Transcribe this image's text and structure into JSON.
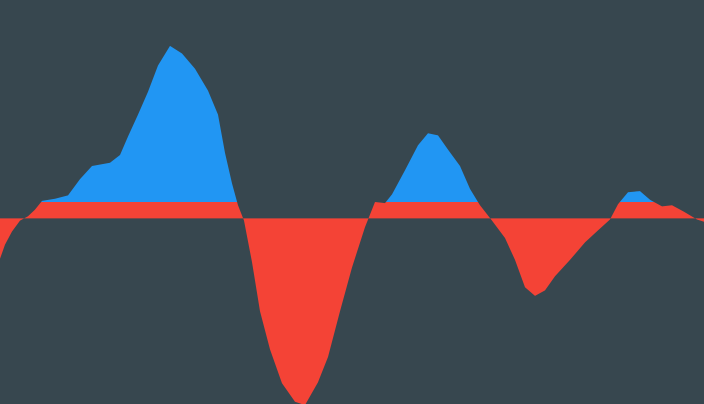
{
  "colors": {
    "background": "#37474f",
    "positive": "#2196f3",
    "negative": "#f44336"
  },
  "chart_data": {
    "type": "area",
    "title": "",
    "xlabel": "",
    "ylabel": "",
    "baseline": 0,
    "grid": false,
    "legend": "none",
    "xlim": [
      0,
      704
    ],
    "ylim": [
      -170,
      200
    ],
    "series": [
      {
        "fill_above": "positive",
        "fill_below": "negative",
        "x": [
          0,
          5,
          12,
          20,
          28,
          35,
          42,
          55,
          68,
          80,
          92,
          110,
          120,
          128,
          138,
          148,
          158,
          170,
          182,
          195,
          208,
          218,
          225,
          232,
          238,
          244,
          252,
          260,
          270,
          282,
          295,
          305,
          318,
          328,
          340,
          352,
          365,
          375,
          385,
          392,
          405,
          418,
          428,
          438,
          448,
          460,
          470,
          480,
          492,
          505,
          515,
          525,
          535,
          545,
          555,
          570,
          585,
          598,
          610,
          618,
          628,
          640,
          650,
          662,
          672,
          684,
          697,
          704
        ],
        "y": [
          -37,
          -24,
          -12,
          -2,
          2,
          8,
          16,
          18,
          21,
          36,
          48,
          51,
          58,
          75,
          95,
          116,
          140,
          158,
          151,
          137,
          117,
          95,
          60,
          32,
          12,
          -2,
          -40,
          -85,
          -120,
          -151,
          -168,
          -171,
          -150,
          -127,
          -85,
          -45,
          -8,
          15,
          14,
          22,
          44,
          67,
          78,
          76,
          63,
          48,
          27,
          12,
          -2,
          -18,
          -38,
          -63,
          -71,
          -66,
          -53,
          -38,
          -22,
          -11,
          -1,
          13,
          24,
          25,
          17,
          11,
          12,
          6,
          -1,
          -3
        ]
      }
    ]
  }
}
